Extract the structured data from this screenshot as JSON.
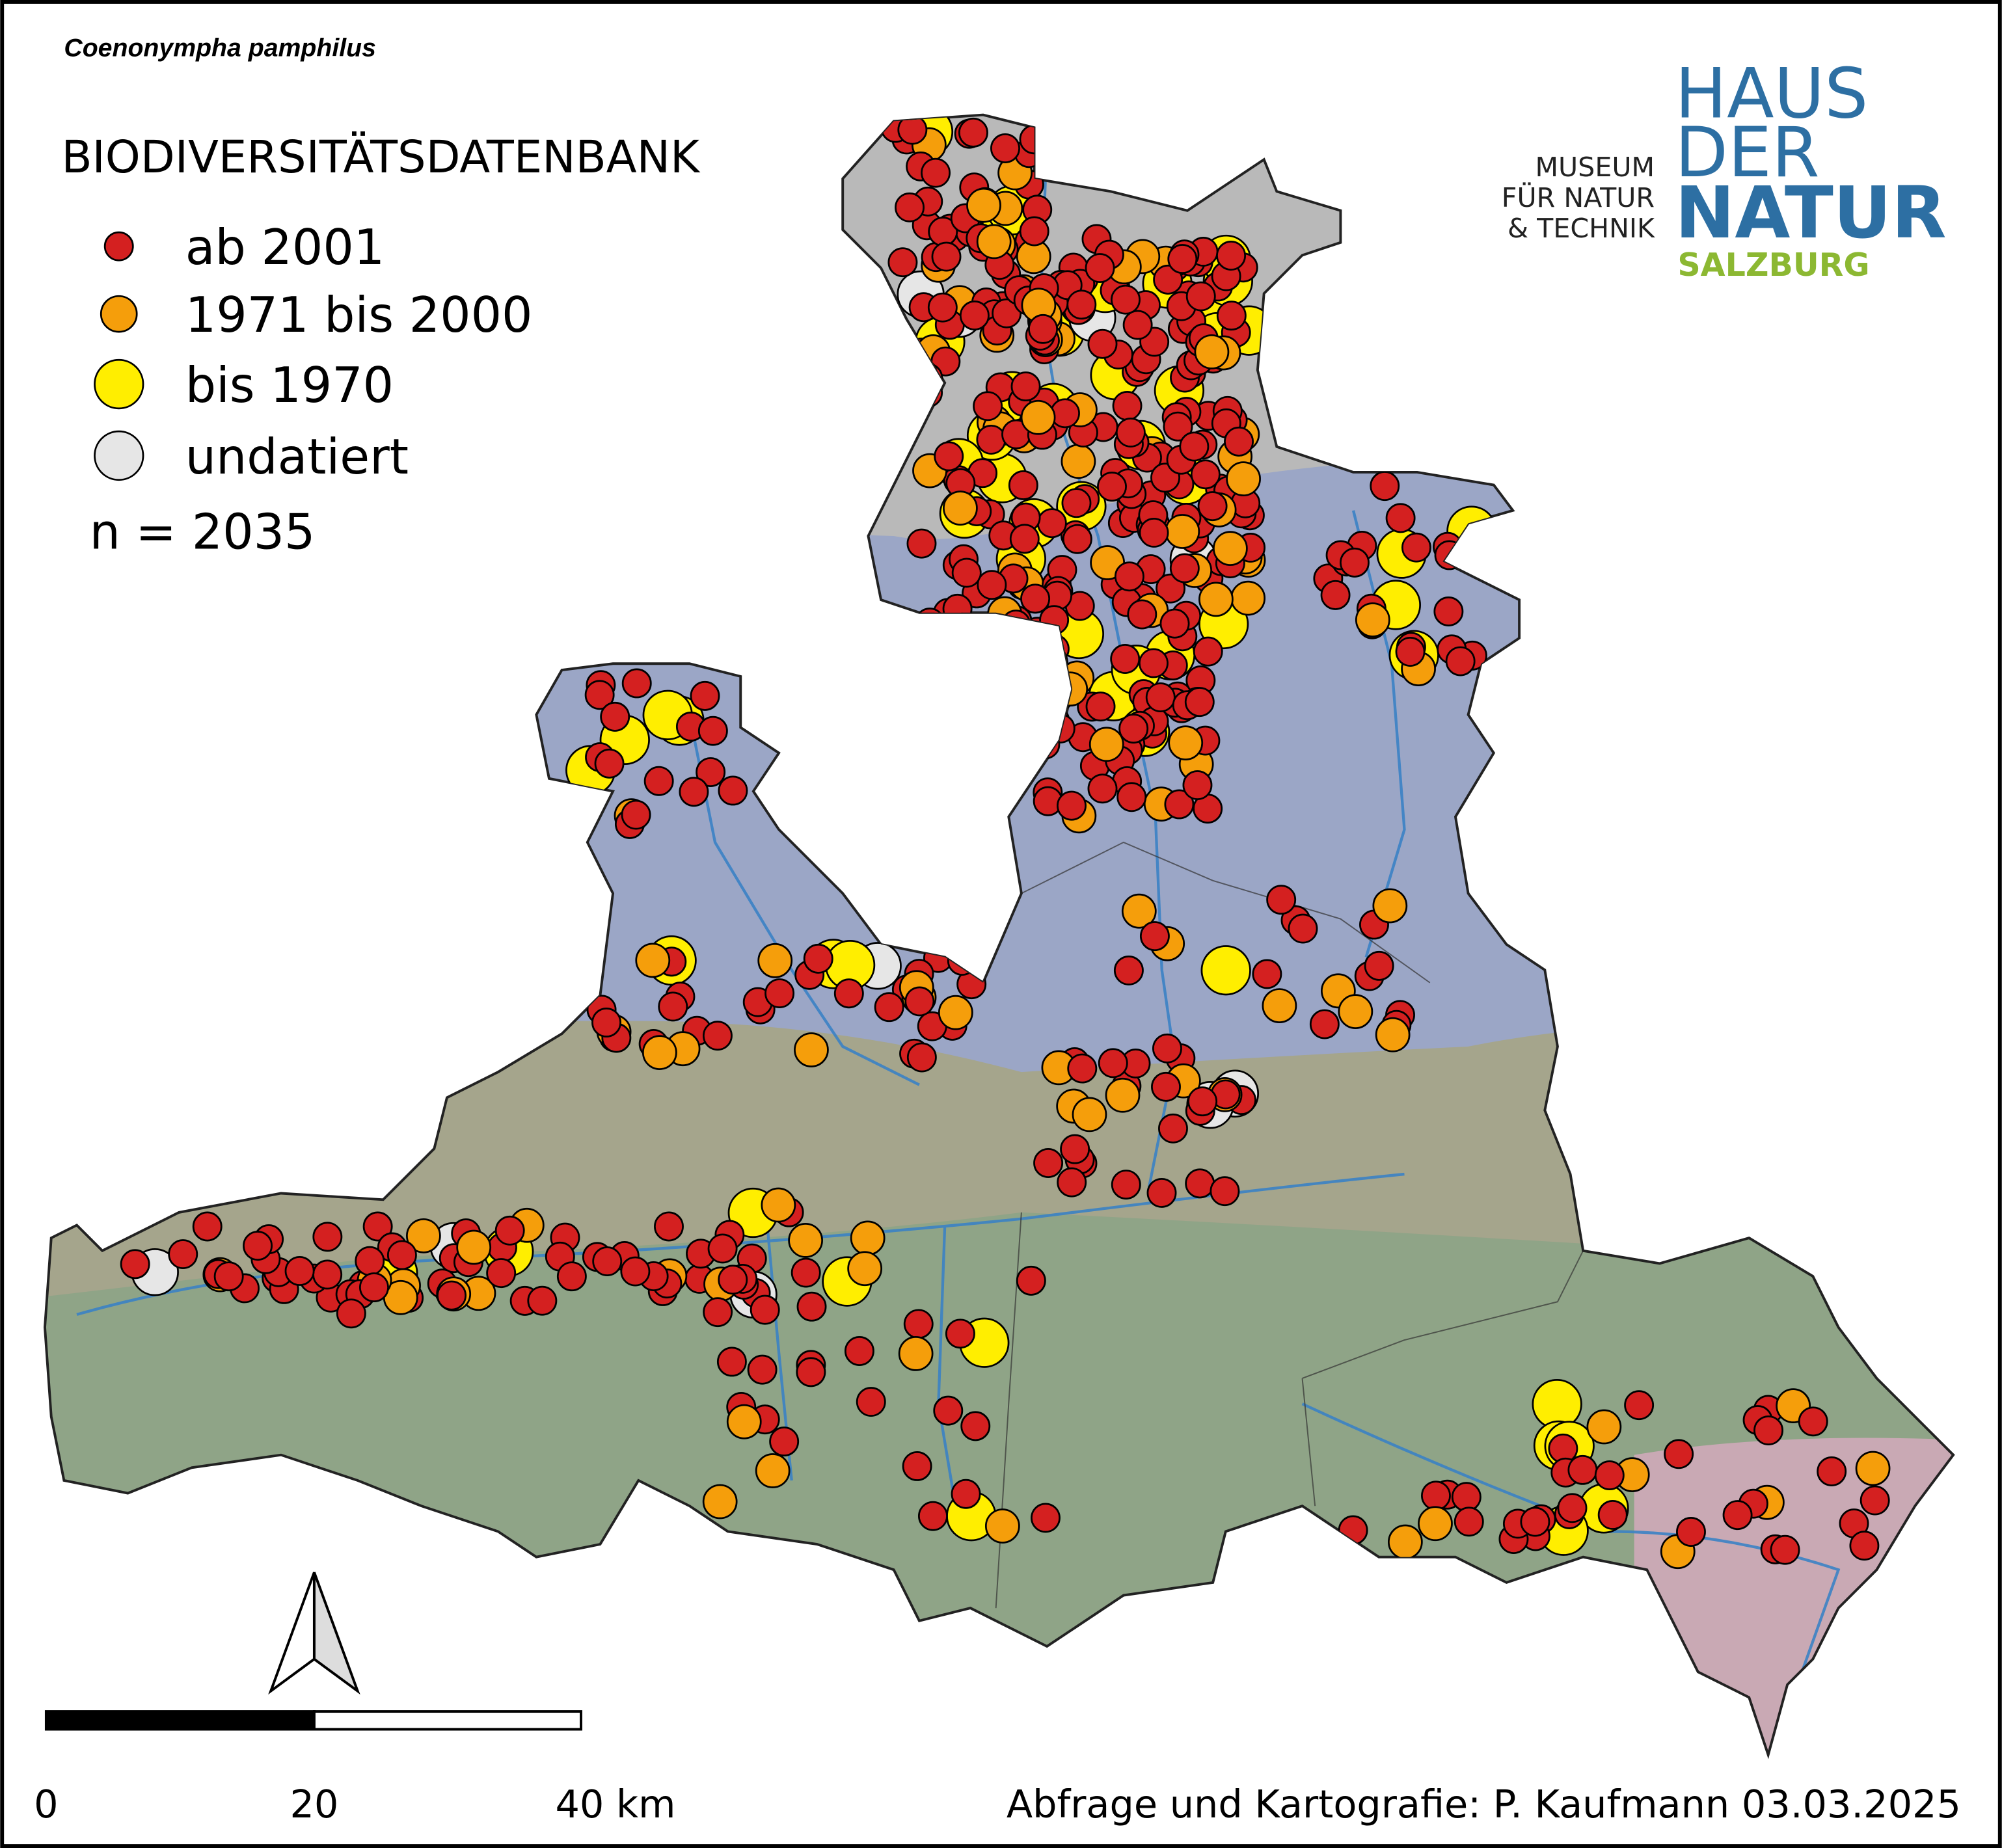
{
  "header": {
    "species": "Coenonympha pamphilus",
    "title": "BIODIVERSITÄTSDATENBANK"
  },
  "legend": {
    "entries": [
      "ab 2001",
      "1971 bis 2000",
      "bis 1970",
      "undatiert"
    ],
    "count": "n = 2035"
  },
  "logo": {
    "line1": "HAUS",
    "line2": "DER",
    "line3": "NATUR",
    "line4": "SALZBURG",
    "museum": [
      "MUSEUM",
      "FÜR NATUR",
      "& TECHNIK"
    ]
  },
  "scale": {
    "labels": [
      "0",
      "20",
      "40 km"
    ]
  },
  "credit": "Abfrage und Kartografie: P. Kaufmann 03.03.2025"
}
